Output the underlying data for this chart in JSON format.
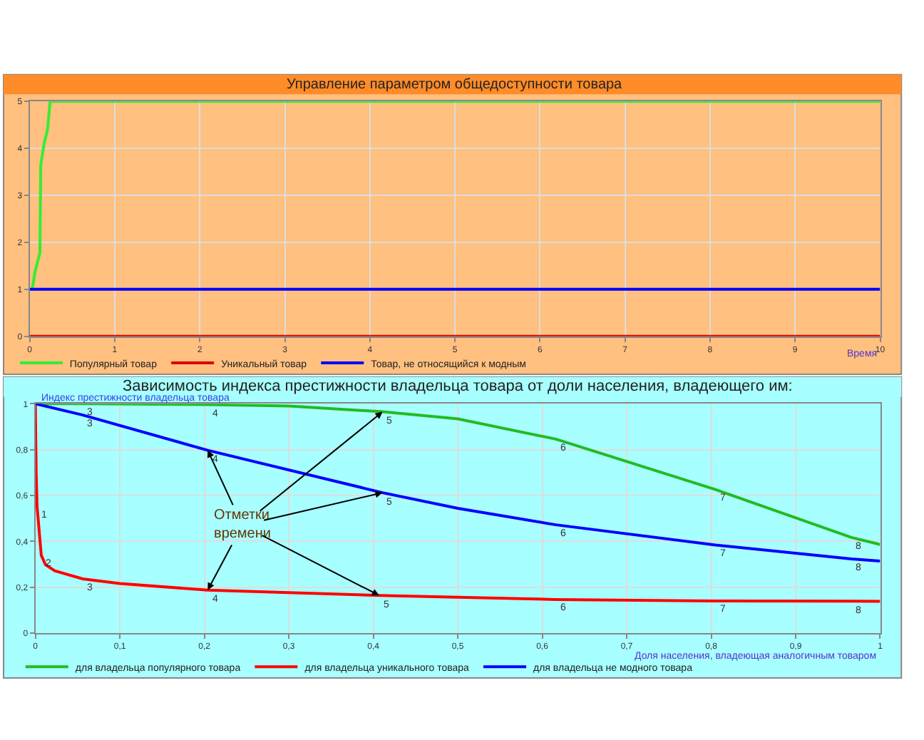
{
  "chart_data": [
    {
      "type": "line",
      "title": "Управление параметром общедоступности товара",
      "xlabel": "Время",
      "series": [
        {
          "name": "Популярный товар",
          "color": "#33ee33",
          "x": [
            0,
            0.03,
            0.06,
            0.12,
            0.13,
            0.17,
            0.21,
            0.24,
            10
          ],
          "values": [
            1,
            1,
            1.35,
            1.78,
            3.65,
            4.1,
            4.4,
            5,
            5
          ]
        },
        {
          "name": "Уникальный товар",
          "color": "#dd0000",
          "x": [
            0,
            10
          ],
          "values": [
            0,
            0
          ]
        },
        {
          "name": "Товар, не относящийся к модным",
          "color": "#0000ff",
          "x": [
            0,
            10
          ],
          "values": [
            1,
            1
          ]
        }
      ],
      "xlim": [
        0,
        10
      ],
      "xticks": [
        0,
        1,
        2,
        3,
        4,
        5,
        6,
        7,
        8,
        9,
        10
      ],
      "ylim": [
        0,
        5
      ],
      "yticks": [
        0,
        1,
        2,
        3,
        4,
        5
      ],
      "grid": true,
      "legend": "bottom left",
      "marker": "none",
      "line_style": "solid"
    },
    {
      "type": "line",
      "title": "Зависимость индекса престижности владельца товара от доли населения, владеющего им:",
      "xlabel": "Доля населения, владеющая аналогичным товаром",
      "ylabel": "Индекс престижности владельца товара",
      "series": [
        {
          "name": "для владельца популярного товара",
          "color": "#22bb22",
          "x": [
            0,
            0.056,
            0.204,
            0.3,
            0.411,
            0.5,
            0.616,
            0.805,
            0.966,
            1
          ],
          "values": [
            1,
            1,
            0.996,
            0.99,
            0.965,
            0.934,
            0.846,
            0.626,
            0.417,
            0.386
          ]
        },
        {
          "name": "для владельца уникального товара",
          "color": "#ff0000",
          "x": [
            0,
            0.001,
            0.002,
            0.007,
            0.012,
            0.023,
            0.056,
            0.1,
            0.204,
            0.407,
            0.5,
            0.616,
            0.805,
            0.966,
            1
          ],
          "values": [
            1,
            0.7,
            0.554,
            0.339,
            0.298,
            0.271,
            0.236,
            0.216,
            0.187,
            0.164,
            0.156,
            0.146,
            0.14,
            0.139,
            0.138
          ]
        },
        {
          "name": "для владельца не модного товара",
          "color": "#0000ff",
          "x": [
            0,
            0.056,
            0.204,
            0.411,
            0.5,
            0.616,
            0.805,
            0.966,
            1
          ],
          "values": [
            1,
            0.951,
            0.797,
            0.612,
            0.544,
            0.472,
            0.384,
            0.323,
            0.314
          ]
        }
      ],
      "xlim": [
        0,
        1
      ],
      "xticks": [
        0,
        {
          "value": 0.1,
          "label": "0,1"
        },
        {
          "value": 0.2,
          "label": "0,2"
        },
        {
          "value": 0.3,
          "label": "0,3"
        },
        {
          "value": 0.4,
          "label": "0,4"
        },
        {
          "value": 0.5,
          "label": "0,5"
        },
        {
          "value": 0.6,
          "label": "0,6"
        },
        {
          "value": 0.7,
          "label": "0,7"
        },
        {
          "value": 0.8,
          "label": "0,8"
        },
        {
          "value": 0.9,
          "label": "0,9"
        },
        1
      ],
      "ylim": [
        0,
        1
      ],
      "yticks": [
        0,
        {
          "value": 0.2,
          "label": "0,2"
        },
        {
          "value": 0.4,
          "label": "0,4"
        },
        {
          "value": 0.6,
          "label": "0,6"
        },
        {
          "value": 0.8,
          "label": "0,8"
        },
        1
      ],
      "grid": true,
      "legend": "bottom left",
      "marker": "none",
      "line_style": "solid",
      "annotations": [
        {
          "text": "Отметки времени",
          "x": 0.411,
          "y": 0.965
        },
        {
          "text": "3",
          "x": 0.056,
          "y": 1
        },
        {
          "text": "4",
          "x": 0.204,
          "y": 0.996
        },
        {
          "text": "5",
          "x": 0.411,
          "y": 0.965
        },
        {
          "text": "6",
          "x": 0.616,
          "y": 0.846
        },
        {
          "text": "7",
          "x": 0.805,
          "y": 0.626
        },
        {
          "text": "8",
          "x": 0.966,
          "y": 0.417
        },
        {
          "text": "3",
          "x": 0.056,
          "y": 0.951
        },
        {
          "text": "4",
          "x": 0.204,
          "y": 0.797
        },
        {
          "text": "5",
          "x": 0.411,
          "y": 0.612
        },
        {
          "text": "6",
          "x": 0.616,
          "y": 0.472
        },
        {
          "text": "7",
          "x": 0.805,
          "y": 0.384
        },
        {
          "text": "8",
          "x": 0.966,
          "y": 0.323
        },
        {
          "text": "1",
          "x": 0.002,
          "y": 0.554
        },
        {
          "text": "2",
          "x": 0.007,
          "y": 0.339
        },
        {
          "text": "3",
          "x": 0.056,
          "y": 0.236
        },
        {
          "text": "4",
          "x": 0.204,
          "y": 0.187
        },
        {
          "text": "5",
          "x": 0.407,
          "y": 0.164
        },
        {
          "text": "6",
          "x": 0.616,
          "y": 0.146
        },
        {
          "text": "7",
          "x": 0.805,
          "y": 0.14
        },
        {
          "text": "8",
          "x": 0.966,
          "y": 0.139
        }
      ]
    }
  ]
}
